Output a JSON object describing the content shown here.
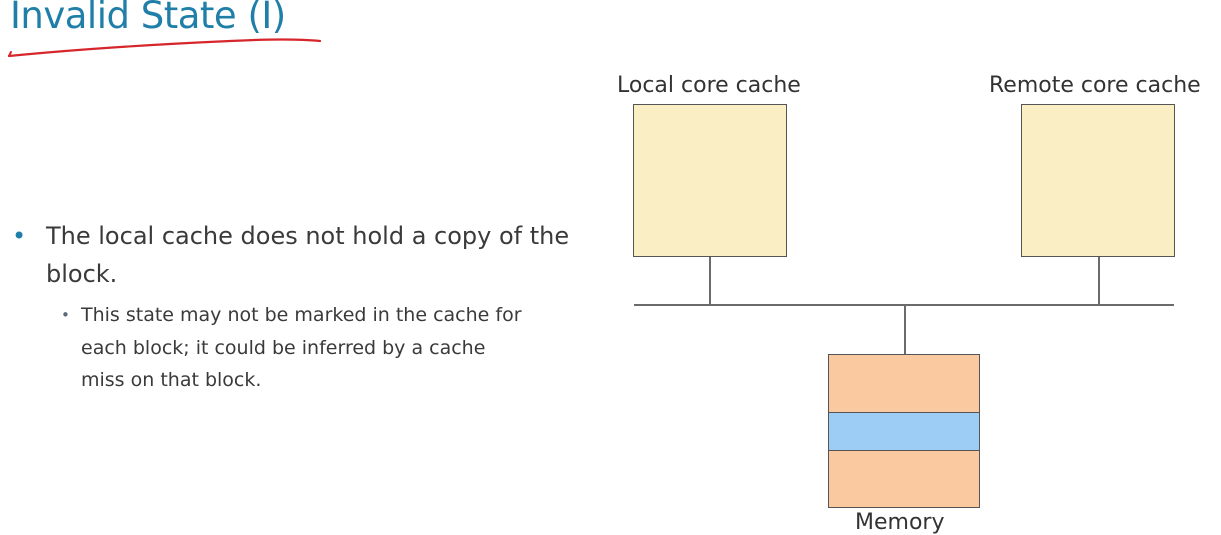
{
  "slide": {
    "title": "Invalid State (I)",
    "accent_color": "#1f7fa8",
    "underline_color": "#d6262b"
  },
  "bullets": {
    "main": "The local cache does not hold a copy of the block.",
    "sub": "This state may not be marked in the cache for each block; it could be inferred by a cache miss on that block."
  },
  "diagram": {
    "local_cache_label": "Local core cache",
    "remote_cache_label": "Remote core cache",
    "memory_label": "Memory",
    "cache_fill": "#f9eec4",
    "memory_fill": "#fbc9a0",
    "memory_block_fill": "#9dcdf5"
  }
}
